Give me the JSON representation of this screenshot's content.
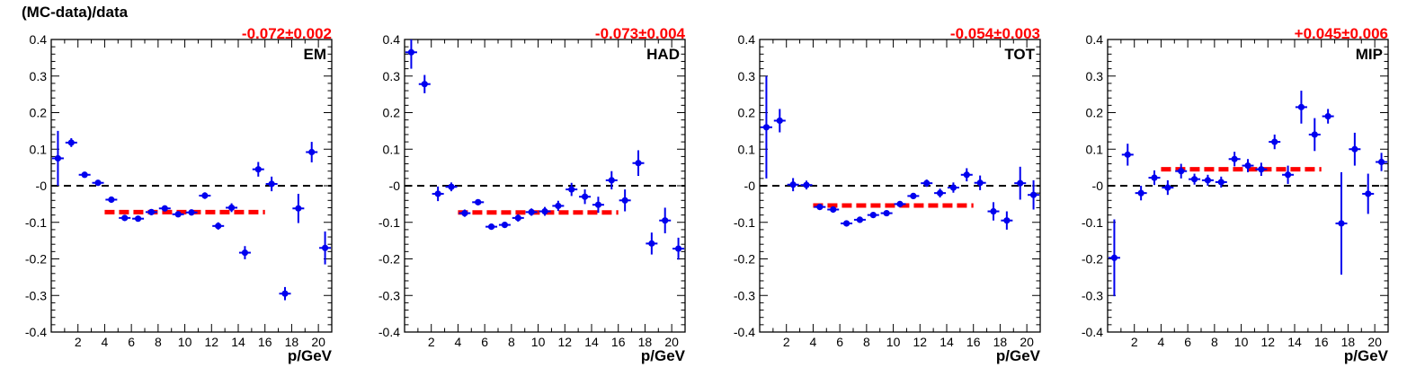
{
  "figure": {
    "ylabel": "(MC-data)/data"
  },
  "colors": {
    "points": "#0000ee",
    "fit": "#ff0000",
    "reference": "#000000",
    "fit_text": "#ff0000"
  },
  "chart_data": [
    {
      "type": "scatter",
      "panel_label": "EM",
      "fit_label": "-0.072±0.002",
      "fit_value": -0.072,
      "fit_range": [
        4,
        16
      ],
      "xlabel": "p/GeV",
      "ylabel": "(MC-data)/data",
      "xlim": [
        0,
        21
      ],
      "ylim": [
        -0.4,
        0.4
      ],
      "x_ticks": [
        2,
        4,
        6,
        8,
        10,
        12,
        14,
        16,
        18,
        20
      ],
      "y_ticks": [
        -0.4,
        -0.3,
        -0.2,
        -0.1,
        0,
        0.1,
        0.2,
        0.3,
        0.4
      ],
      "y_tick_labels": [
        "-0.4",
        "-0.3",
        "-0.2",
        "-0.1",
        "-0",
        "0.1",
        "0.2",
        "0.3",
        "0.4"
      ],
      "reference_y": 0,
      "series": [
        {
          "x": [
            0.5,
            1.5,
            2.5,
            3.5,
            4.5,
            5.5,
            6.5,
            7.5,
            8.5,
            9.5,
            10.5,
            11.5,
            12.5,
            13.5,
            14.5,
            15.5,
            16.5,
            17.5,
            18.5,
            19.5,
            20.5
          ],
          "y": [
            0.075,
            0.118,
            0.03,
            0.008,
            -0.038,
            -0.088,
            -0.09,
            -0.072,
            -0.062,
            -0.078,
            -0.073,
            -0.027,
            -0.11,
            -0.06,
            -0.183,
            0.045,
            0.005,
            -0.295,
            -0.062,
            0.092,
            -0.17
          ],
          "yerr": [
            0.075,
            0.012,
            0.006,
            0.005,
            0.005,
            0.005,
            0.005,
            0.006,
            0.007,
            0.008,
            0.008,
            0.009,
            0.01,
            0.012,
            0.018,
            0.02,
            0.02,
            0.018,
            0.04,
            0.028,
            0.045
          ]
        }
      ]
    },
    {
      "type": "scatter",
      "panel_label": "HAD",
      "fit_label": "-0.073±0.004",
      "fit_value": -0.073,
      "fit_range": [
        4,
        16
      ],
      "xlabel": "p/GeV",
      "ylabel": "",
      "xlim": [
        0,
        21
      ],
      "ylim": [
        -0.4,
        0.4
      ],
      "x_ticks": [
        2,
        4,
        6,
        8,
        10,
        12,
        14,
        16,
        18,
        20
      ],
      "y_ticks": [
        -0.4,
        -0.3,
        -0.2,
        -0.1,
        0,
        0.1,
        0.2,
        0.3,
        0.4
      ],
      "y_tick_labels": [
        "-0.4",
        "-0.3",
        "-0.2",
        "-0.1",
        "-0",
        "0.1",
        "0.2",
        "0.3",
        "0.4"
      ],
      "reference_y": 0,
      "series": [
        {
          "x": [
            0.5,
            1.5,
            2.5,
            3.5,
            4.5,
            5.5,
            6.5,
            7.5,
            8.5,
            9.5,
            10.5,
            11.5,
            12.5,
            13.5,
            14.5,
            15.5,
            16.5,
            17.5,
            18.5,
            19.5,
            20.5
          ],
          "y": [
            0.365,
            0.278,
            -0.022,
            -0.003,
            -0.075,
            -0.045,
            -0.112,
            -0.107,
            -0.088,
            -0.072,
            -0.07,
            -0.055,
            -0.01,
            -0.03,
            -0.052,
            0.015,
            -0.04,
            0.062,
            -0.158,
            -0.095,
            -0.172
          ],
          "yerr": [
            0.045,
            0.025,
            0.02,
            0.012,
            0.01,
            0.008,
            0.008,
            0.008,
            0.01,
            0.01,
            0.012,
            0.014,
            0.018,
            0.02,
            0.022,
            0.025,
            0.03,
            0.035,
            0.03,
            0.035,
            0.03
          ]
        }
      ]
    },
    {
      "type": "scatter",
      "panel_label": "TOT",
      "fit_label": "-0.054±0.003",
      "fit_value": -0.054,
      "fit_range": [
        4,
        16
      ],
      "xlabel": "p/GeV",
      "ylabel": "",
      "xlim": [
        0,
        21
      ],
      "ylim": [
        -0.4,
        0.4
      ],
      "x_ticks": [
        2,
        4,
        6,
        8,
        10,
        12,
        14,
        16,
        18,
        20
      ],
      "y_ticks": [
        -0.4,
        -0.3,
        -0.2,
        -0.1,
        0,
        0.1,
        0.2,
        0.3,
        0.4
      ],
      "y_tick_labels": [
        "-0.4",
        "-0.3",
        "-0.2",
        "-0.1",
        "-0",
        "0.1",
        "0.2",
        "0.3",
        "0.4"
      ],
      "reference_y": 0,
      "series": [
        {
          "x": [
            0.5,
            1.5,
            2.5,
            3.5,
            4.5,
            5.5,
            6.5,
            7.5,
            8.5,
            9.5,
            10.5,
            11.5,
            12.5,
            13.5,
            14.5,
            15.5,
            16.5,
            17.5,
            18.5,
            19.5,
            20.5
          ],
          "y": [
            0.16,
            0.178,
            0.003,
            0.002,
            -0.058,
            -0.065,
            -0.103,
            -0.093,
            -0.08,
            -0.075,
            -0.05,
            -0.028,
            0.007,
            -0.02,
            -0.005,
            0.03,
            0.008,
            -0.07,
            -0.095,
            0.007,
            -0.025
          ],
          "yerr": [
            0.14,
            0.032,
            0.018,
            0.012,
            0.008,
            0.006,
            0.006,
            0.006,
            0.006,
            0.006,
            0.007,
            0.008,
            0.01,
            0.012,
            0.014,
            0.018,
            0.02,
            0.025,
            0.025,
            0.045,
            0.04
          ]
        }
      ]
    },
    {
      "type": "scatter",
      "panel_label": "MIP",
      "fit_label": "+0.045±0.006",
      "fit_value": 0.045,
      "fit_range": [
        4,
        16
      ],
      "xlabel": "p/GeV",
      "ylabel": "",
      "xlim": [
        0,
        21
      ],
      "ylim": [
        -0.4,
        0.4
      ],
      "x_ticks": [
        2,
        4,
        6,
        8,
        10,
        12,
        14,
        16,
        18,
        20
      ],
      "y_ticks": [
        -0.4,
        -0.3,
        -0.2,
        -0.1,
        0,
        0.1,
        0.2,
        0.3,
        0.4
      ],
      "y_tick_labels": [
        "-0.4",
        "-0.3",
        "-0.2",
        "-0.1",
        "-0",
        "0.1",
        "0.2",
        "0.3",
        "0.4"
      ],
      "reference_y": 0,
      "series": [
        {
          "x": [
            0.5,
            1.5,
            2.5,
            3.5,
            4.5,
            5.5,
            6.5,
            7.5,
            8.5,
            9.5,
            10.5,
            11.5,
            12.5,
            13.5,
            14.5,
            15.5,
            16.5,
            17.5,
            18.5,
            19.5,
            20.5
          ],
          "y": [
            -0.197,
            0.085,
            -0.02,
            0.022,
            -0.005,
            0.04,
            0.018,
            0.015,
            0.01,
            0.073,
            0.055,
            0.045,
            0.12,
            0.03,
            0.215,
            0.14,
            0.19,
            -0.103,
            0.1,
            -0.022,
            0.065
          ],
          "yerr": [
            0.105,
            0.03,
            0.02,
            0.02,
            0.02,
            0.02,
            0.015,
            0.015,
            0.015,
            0.02,
            0.018,
            0.018,
            0.02,
            0.025,
            0.045,
            0.045,
            0.02,
            0.14,
            0.045,
            0.055,
            0.025
          ]
        }
      ]
    }
  ]
}
